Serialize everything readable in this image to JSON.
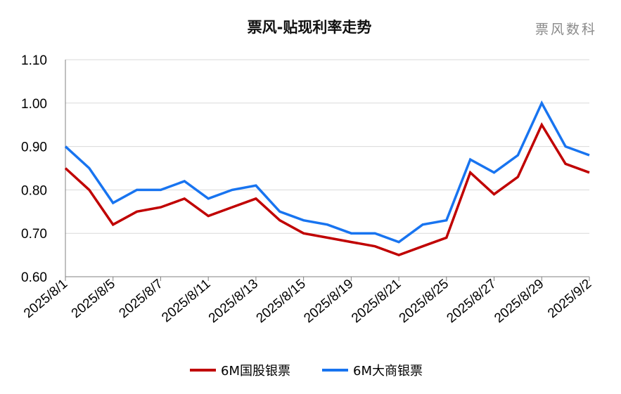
{
  "watermark": "票风数科",
  "colors": {
    "series1": "#C00000",
    "series2": "#1874F0"
  },
  "chart_data": {
    "type": "line",
    "title": "票风-贴现利率走势",
    "ylim": [
      0.6,
      1.1
    ],
    "yticks": [
      "1.10",
      "1.00",
      "0.90",
      "0.80",
      "0.70",
      "0.60"
    ],
    "x": [
      "2025/8/1",
      "2025/8/4",
      "2025/8/5",
      "2025/8/6",
      "2025/8/7",
      "2025/8/8",
      "2025/8/11",
      "2025/8/12",
      "2025/8/13",
      "2025/8/14",
      "2025/8/15",
      "2025/8/18",
      "2025/8/19",
      "2025/8/20",
      "2025/8/21",
      "2025/8/22",
      "2025/8/25",
      "2025/8/26",
      "2025/8/27",
      "2025/8/28",
      "2025/8/29",
      "2025/9/1",
      "2025/9/2"
    ],
    "xtick_labels": [
      "2025/8/1",
      "2025/8/5",
      "2025/8/7",
      "2025/8/11",
      "2025/8/13",
      "2025/8/15",
      "2025/8/19",
      "2025/8/21",
      "2025/8/25",
      "2025/8/27",
      "2025/8/29",
      "2025/9/2"
    ],
    "grid": true,
    "legend_position": "bottom",
    "series": [
      {
        "name": "6M国股银票",
        "values": [
          0.85,
          0.8,
          0.72,
          0.75,
          0.76,
          0.78,
          0.74,
          0.76,
          0.78,
          0.73,
          0.7,
          0.69,
          0.68,
          0.67,
          0.65,
          0.67,
          0.69,
          0.84,
          0.79,
          0.83,
          0.95,
          0.86,
          0.84
        ]
      },
      {
        "name": "6M大商银票",
        "values": [
          0.9,
          0.85,
          0.77,
          0.8,
          0.8,
          0.82,
          0.78,
          0.8,
          0.81,
          0.75,
          0.73,
          0.72,
          0.7,
          0.7,
          0.68,
          0.72,
          0.73,
          0.87,
          0.84,
          0.88,
          1.0,
          0.9,
          0.88
        ]
      }
    ]
  }
}
